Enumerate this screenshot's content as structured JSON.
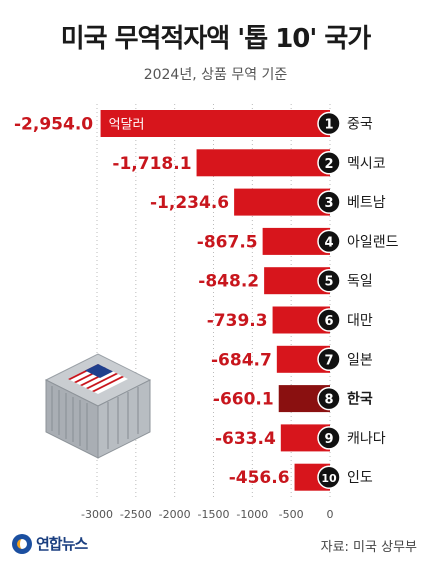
{
  "header": {
    "title": "미국 무역적자액 '톱 10' 국가",
    "subtitle": "2024년, 상품 무역 기준"
  },
  "chart_data": {
    "type": "bar",
    "orientation": "horizontal",
    "title": "미국 무역적자액 '톱 10' 국가",
    "subtitle": "2024년, 상품 무역 기준",
    "unit_label": "억달러",
    "categories": [
      "중국",
      "멕시코",
      "베트남",
      "아일랜드",
      "독일",
      "대만",
      "일본",
      "한국",
      "캐나다",
      "인도"
    ],
    "ranks": [
      "1",
      "2",
      "3",
      "4",
      "5",
      "6",
      "7",
      "8",
      "9",
      "10"
    ],
    "values": [
      -2954.0,
      -1718.1,
      -1234.6,
      -867.5,
      -848.2,
      -739.3,
      -684.7,
      -660.1,
      -633.4,
      -456.6
    ],
    "value_labels": [
      "-2,954.0",
      "-1,718.1",
      "-1,234.6",
      "-867.5",
      "-848.2",
      "-739.3",
      "-684.7",
      "-660.1",
      "-633.4",
      "-456.6"
    ],
    "highlight": "한국",
    "xlim": [
      -3000,
      0
    ],
    "x_ticks": [
      -3000,
      -2500,
      -2000,
      -1500,
      -1000,
      -500,
      0
    ],
    "x_tick_labels": [
      "-3000",
      "-2500",
      "-2000",
      "-1500",
      "-1000",
      "-500",
      "0"
    ],
    "grid": "vertical-dotted",
    "colors": {
      "bar": "#d7151c",
      "highlight_bar": "#8a1010",
      "value_text": "#c8161d",
      "rank_badge": "#111111"
    }
  },
  "footer": {
    "logo_text": "연합뉴스",
    "source": "자료: 미국 상무부"
  }
}
